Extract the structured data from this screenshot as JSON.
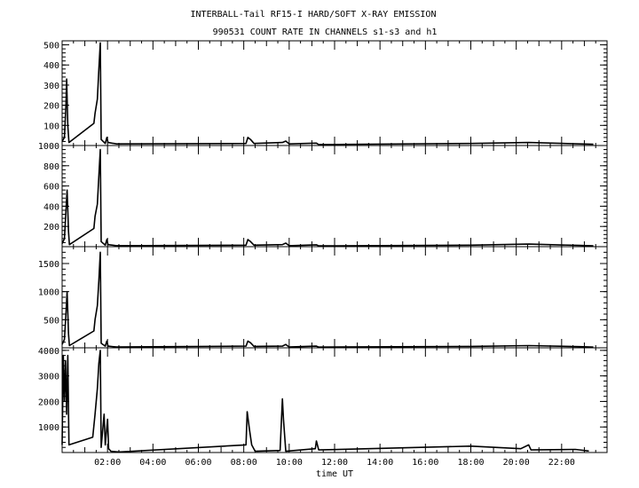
{
  "chart_data": {
    "type": "line",
    "title": "INTERBALL-Tail RF15-I HARD/SOFT X-RAY EMISSION",
    "subtitle": "990531  COUNT RATE IN CHANNELS s1-s3 and h1",
    "xlabel": "time UT",
    "xlim": [
      0,
      24
    ],
    "x_ticks": [
      "02:00",
      "04:00",
      "06:00",
      "08:00",
      "10:00",
      "12:00",
      "14:00",
      "16:00",
      "18:00",
      "20:00",
      "22:00"
    ],
    "grid": false,
    "panels": [
      {
        "ylim": [
          0,
          520
        ],
        "y_ticks": [
          100,
          200,
          300,
          400,
          500
        ],
        "points": [
          [
            0.0,
            20
          ],
          [
            0.1,
            40
          ],
          [
            0.17,
            200
          ],
          [
            0.2,
            330
          ],
          [
            0.25,
            100
          ],
          [
            0.3,
            15
          ],
          [
            1.4,
            110
          ],
          [
            1.45,
            160
          ],
          [
            1.55,
            230
          ],
          [
            1.62,
            380
          ],
          [
            1.68,
            510
          ],
          [
            1.72,
            30
          ],
          [
            1.9,
            10
          ],
          [
            1.97,
            40
          ],
          [
            2.02,
            15
          ],
          [
            2.4,
            8
          ],
          [
            8.1,
            10
          ],
          [
            8.18,
            40
          ],
          [
            8.3,
            30
          ],
          [
            8.45,
            10
          ],
          [
            9.7,
            15
          ],
          [
            9.85,
            22
          ],
          [
            10.0,
            8
          ],
          [
            11.2,
            12
          ],
          [
            11.3,
            5
          ],
          [
            18.0,
            10
          ],
          [
            20.55,
            15
          ],
          [
            22.8,
            8
          ],
          [
            23.4,
            6
          ]
        ]
      },
      {
        "ylim": [
          0,
          1000
        ],
        "y_ticks": [
          200,
          400,
          600,
          800,
          1000
        ],
        "points": [
          [
            0.0,
            30
          ],
          [
            0.1,
            80
          ],
          [
            0.17,
            350
          ],
          [
            0.22,
            560
          ],
          [
            0.28,
            150
          ],
          [
            0.32,
            20
          ],
          [
            1.4,
            180
          ],
          [
            1.45,
            300
          ],
          [
            1.55,
            420
          ],
          [
            1.62,
            700
          ],
          [
            1.68,
            960
          ],
          [
            1.72,
            50
          ],
          [
            1.9,
            15
          ],
          [
            1.97,
            70
          ],
          [
            2.02,
            20
          ],
          [
            2.4,
            10
          ],
          [
            8.1,
            15
          ],
          [
            8.18,
            70
          ],
          [
            8.3,
            50
          ],
          [
            8.45,
            15
          ],
          [
            9.7,
            20
          ],
          [
            9.85,
            35
          ],
          [
            10.0,
            10
          ],
          [
            11.2,
            18
          ],
          [
            11.3,
            8
          ],
          [
            18.0,
            15
          ],
          [
            20.55,
            25
          ],
          [
            22.8,
            12
          ],
          [
            23.4,
            8
          ]
        ]
      },
      {
        "ylim": [
          0,
          1800
        ],
        "y_ticks": [
          500,
          1000,
          1500
        ],
        "points": [
          [
            0.0,
            60
          ],
          [
            0.1,
            150
          ],
          [
            0.17,
            600
          ],
          [
            0.22,
            1000
          ],
          [
            0.28,
            250
          ],
          [
            0.32,
            40
          ],
          [
            1.4,
            300
          ],
          [
            1.45,
            500
          ],
          [
            1.55,
            750
          ],
          [
            1.62,
            1200
          ],
          [
            1.68,
            1700
          ],
          [
            1.72,
            80
          ],
          [
            1.9,
            30
          ],
          [
            1.97,
            120
          ],
          [
            2.02,
            30
          ],
          [
            2.4,
            15
          ],
          [
            8.1,
            30
          ],
          [
            8.18,
            120
          ],
          [
            8.3,
            90
          ],
          [
            8.45,
            25
          ],
          [
            9.7,
            30
          ],
          [
            9.85,
            60
          ],
          [
            10.0,
            15
          ],
          [
            11.2,
            30
          ],
          [
            11.3,
            12
          ],
          [
            18.0,
            25
          ],
          [
            20.55,
            40
          ],
          [
            22.8,
            20
          ],
          [
            23.4,
            12
          ]
        ]
      },
      {
        "ylim": [
          0,
          4100
        ],
        "y_ticks": [
          1000,
          2000,
          3000,
          4000
        ],
        "points": [
          [
            0.0,
            300
          ],
          [
            0.05,
            3800
          ],
          [
            0.1,
            2000
          ],
          [
            0.15,
            3600
          ],
          [
            0.2,
            1500
          ],
          [
            0.25,
            3800
          ],
          [
            0.3,
            300
          ],
          [
            1.35,
            600
          ],
          [
            1.45,
            1500
          ],
          [
            1.55,
            2500
          ],
          [
            1.62,
            3500
          ],
          [
            1.68,
            4000
          ],
          [
            1.72,
            200
          ],
          [
            1.85,
            1500
          ],
          [
            1.9,
            300
          ],
          [
            2.0,
            1300
          ],
          [
            2.05,
            150
          ],
          [
            2.15,
            50
          ],
          [
            2.5,
            20
          ],
          [
            8.1,
            300
          ],
          [
            8.15,
            1600
          ],
          [
            8.25,
            900
          ],
          [
            8.35,
            300
          ],
          [
            8.5,
            50
          ],
          [
            9.6,
            80
          ],
          [
            9.7,
            2100
          ],
          [
            9.75,
            1300
          ],
          [
            9.85,
            50
          ],
          [
            11.15,
            150
          ],
          [
            11.2,
            450
          ],
          [
            11.3,
            100
          ],
          [
            18.0,
            250
          ],
          [
            20.2,
            150
          ],
          [
            20.55,
            300
          ],
          [
            20.65,
            100
          ],
          [
            22.6,
            120
          ],
          [
            23.2,
            60
          ]
        ]
      }
    ]
  }
}
